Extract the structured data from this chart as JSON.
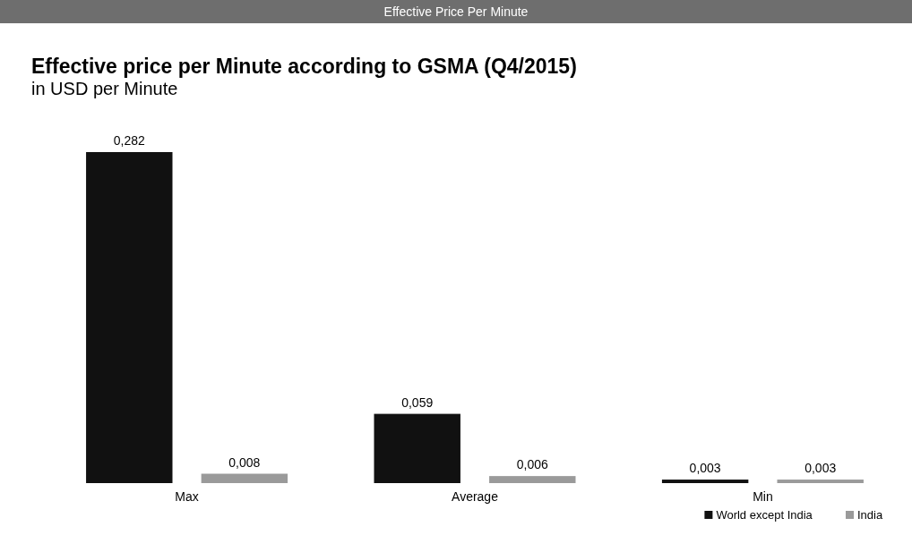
{
  "chart_data": {
    "type": "bar",
    "title": "Effective price per Minute according to GSMA (Q4/2015)",
    "subtitle": "in USD per Minute",
    "annotations": [
      "Effective Price Per Minute"
    ],
    "categories": [
      "Max",
      "Average",
      "Min"
    ],
    "relative": false,
    "series": [
      {
        "name": "World except India",
        "color": "#111111",
        "values": [
          0.282,
          0.059,
          0.003
        ],
        "value_labels": [
          "0,282",
          "0,059",
          "0,003"
        ]
      },
      {
        "name": "India",
        "color": "#9a9a9a",
        "values": [
          0.008,
          0.006,
          0.003
        ],
        "value_labels": [
          "0,008",
          "0,006",
          "0,003"
        ]
      }
    ],
    "legend": "bottom right"
  }
}
